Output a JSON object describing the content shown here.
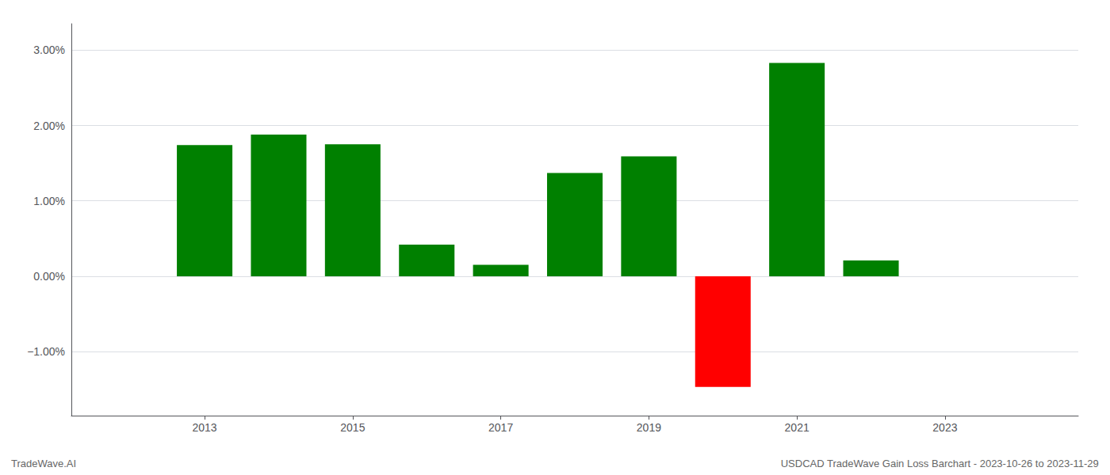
{
  "chart_data": {
    "type": "bar",
    "x": [
      2013,
      2014,
      2015,
      2016,
      2017,
      2018,
      2019,
      2020,
      2021,
      2022
    ],
    "values": [
      1.74,
      1.88,
      1.75,
      0.42,
      0.15,
      1.37,
      1.59,
      -1.47,
      2.83,
      0.21
    ],
    "colors": [
      "#008000",
      "#008000",
      "#008000",
      "#008000",
      "#008000",
      "#008000",
      "#008000",
      "#ff0000",
      "#008000",
      "#008000"
    ],
    "xlim": [
      2011.2,
      2024.8
    ],
    "xticks": [
      2013,
      2015,
      2017,
      2019,
      2021,
      2023
    ],
    "ylim": [
      -1.85,
      3.35
    ],
    "yticks": [
      {
        "value": -1.0,
        "label": "−1.00%"
      },
      {
        "value": 0.0,
        "label": "0.00%"
      },
      {
        "value": 1.0,
        "label": "1.00%"
      },
      {
        "value": 2.0,
        "label": "2.00%"
      },
      {
        "value": 3.0,
        "label": "3.00%"
      }
    ],
    "grid": true,
    "annotations": [
      "TradeWave.AI",
      "USDCAD TradeWave Gain Loss Barchart - 2023-10-26 to 2023-11-29"
    ]
  }
}
